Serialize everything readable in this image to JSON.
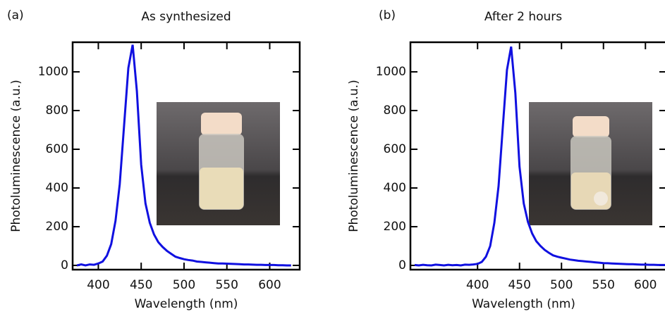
{
  "chart_data": [
    {
      "type": "line",
      "panel": "(a)",
      "title": "As synthesized",
      "xlabel": "Wavelength (nm)",
      "ylabel": "Photoluminescence (a.u.)",
      "x": [
        375,
        380,
        385,
        390,
        395,
        400,
        405,
        410,
        415,
        420,
        425,
        430,
        435,
        440,
        445,
        450,
        455,
        460,
        465,
        470,
        475,
        480,
        485,
        490,
        495,
        500,
        505,
        510,
        515,
        520,
        525,
        530,
        535,
        540,
        545,
        550,
        555,
        560,
        565,
        570,
        575,
        580,
        585,
        590,
        595,
        600,
        605,
        610,
        615,
        620,
        625
      ],
      "series": [
        {
          "color": "#1010e0",
          "values": [
            0,
            5,
            0,
            5,
            3,
            10,
            20,
            50,
            110,
            230,
            420,
            720,
            1020,
            1140,
            900,
            520,
            320,
            220,
            160,
            120,
            95,
            75,
            60,
            45,
            38,
            32,
            28,
            25,
            20,
            18,
            16,
            14,
            12,
            10,
            10,
            9,
            8,
            7,
            6,
            5,
            5,
            4,
            3,
            3,
            2,
            2,
            2,
            1,
            1,
            0,
            0
          ]
        }
      ],
      "xlim": [
        370,
        635
      ],
      "ylim": [
        -22,
        1153
      ],
      "xticks": [
        400,
        450,
        500,
        550,
        600
      ],
      "yticks": [
        0,
        200,
        400,
        600,
        800,
        1000
      ]
    },
    {
      "type": "line",
      "panel": "(b)",
      "title": "After 2 hours",
      "xlabel": "Wavelength (nm)",
      "ylabel": "Photoluminescence (a.u.)",
      "x": [
        325,
        330,
        335,
        340,
        345,
        350,
        355,
        360,
        365,
        370,
        375,
        380,
        385,
        390,
        395,
        400,
        405,
        410,
        415,
        420,
        425,
        430,
        435,
        440,
        445,
        450,
        455,
        460,
        465,
        470,
        475,
        480,
        485,
        490,
        495,
        500,
        505,
        510,
        515,
        520,
        525,
        530,
        535,
        540,
        545,
        550,
        555,
        560,
        565,
        570,
        575,
        580,
        585,
        590,
        595,
        600,
        605,
        610,
        615,
        620,
        625
      ],
      "series": [
        {
          "color": "#1010e0",
          "values": [
            2,
            0,
            3,
            1,
            0,
            4,
            2,
            0,
            3,
            1,
            2,
            0,
            4,
            3,
            5,
            8,
            18,
            45,
            100,
            220,
            410,
            710,
            1010,
            1130,
            890,
            510,
            320,
            225,
            165,
            125,
            100,
            80,
            65,
            52,
            45,
            40,
            35,
            30,
            27,
            24,
            22,
            20,
            18,
            16,
            14,
            12,
            11,
            10,
            9,
            8,
            7,
            6,
            6,
            5,
            4,
            4,
            3,
            3,
            2,
            2,
            2
          ]
        }
      ],
      "xlim": [
        320,
        625
      ],
      "ylim": [
        -22,
        1153
      ],
      "xticks": [
        400,
        450,
        500,
        550,
        600
      ],
      "yticks": [
        0,
        200,
        400,
        600,
        800,
        1000
      ]
    }
  ]
}
